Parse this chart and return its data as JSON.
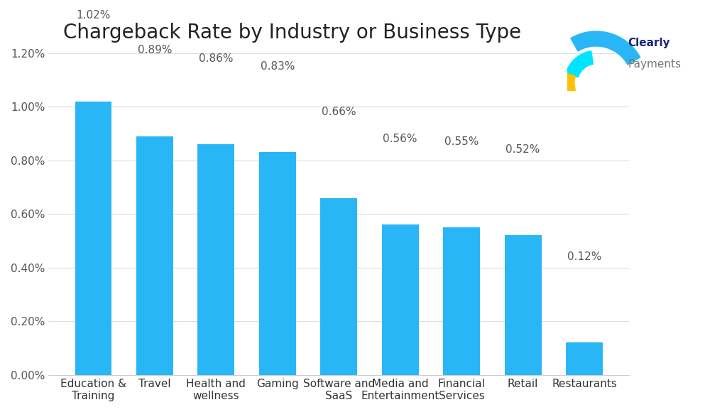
{
  "title": "Chargeback Rate by Industry or Business Type",
  "categories": [
    "Education &\nTraining",
    "Travel",
    "Health and\nwellness",
    "Gaming",
    "Software and\nSaaS",
    "Media and\nEntertainment",
    "Financial\nServices",
    "Retail",
    "Restaurants"
  ],
  "values": [
    1.02,
    0.89,
    0.86,
    0.83,
    0.66,
    0.56,
    0.55,
    0.52,
    0.12
  ],
  "labels": [
    "1.02%",
    "0.89%",
    "0.86%",
    "0.83%",
    "0.66%",
    "0.56%",
    "0.55%",
    "0.52%",
    "0.12%"
  ],
  "bar_color": "#29B6F6",
  "background_color": "#FFFFFF",
  "ylim": [
    0,
    1.2
  ],
  "yticks": [
    0.0,
    0.2,
    0.4,
    0.6,
    0.8,
    1.0,
    1.2
  ],
  "ytick_labels": [
    "0.00%",
    "0.20%",
    "0.40%",
    "0.60%",
    "0.80%",
    "1.00%",
    "1.20%"
  ],
  "title_fontsize": 20,
  "tick_fontsize": 11,
  "label_fontsize": 11,
  "logo_text_clearly": "Clearly",
  "logo_text_payments": "Payments",
  "logo_color_clearly": "#1A237E",
  "logo_color_payments": "#757575"
}
